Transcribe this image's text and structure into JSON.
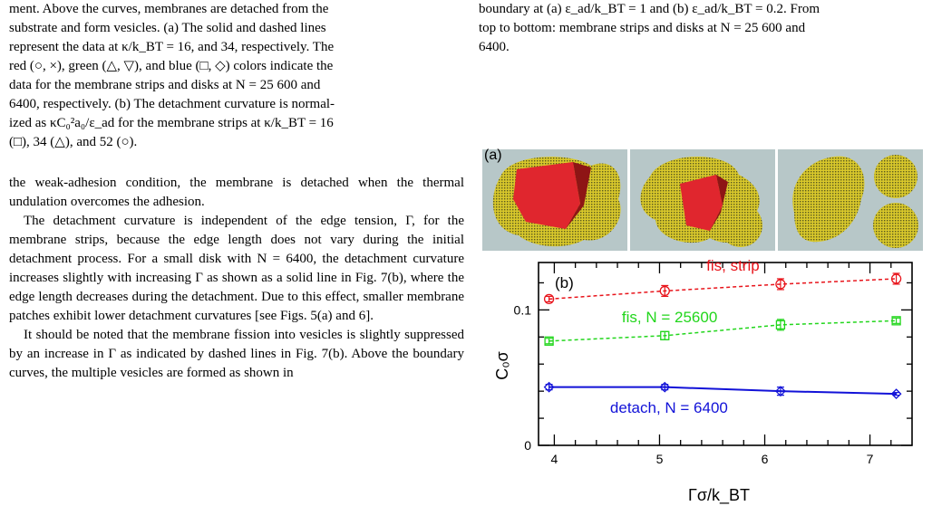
{
  "left_column": {
    "caption_lines": [
      "ment. Above the curves, membranes are detached from the",
      "substrate and form vesicles. (a) The solid and dashed lines",
      "represent the data at κ/k_BT = 16, and 34, respectively. The",
      "red (○, ×), green (△, ▽), and blue (□, ◇) colors indicate the",
      "data for the membrane strips and disks at N = 25 600 and",
      "6400, respectively. (b) The detachment curvature is normal-",
      "ized as κC₀²a₀/ε_ad for the membrane strips at κ/k_BT = 16",
      "(□), 34 (△), and 52 (○)."
    ],
    "paragraphs": [
      "the weak-adhesion condition, the membrane is detached when the thermal undulation overcomes the adhesion.",
      "The detachment curvature is independent of the edge tension, Γ, for the membrane strips, because the edge length does not vary during the initial detachment process. For a small disk with N = 6400, the detachment curvature increases slightly with increasing Γ as shown as a solid line in Fig. 7(b), where the edge length decreases during the detachment. Due to this effect, smaller membrane patches exhibit lower detachment curvatures [see Figs. 5(a) and 6].",
      "It should be noted that the membrane fission into vesicles is slightly suppressed by an increase in Γ as indicated by dashed lines in Fig. 7(b). Above the boundary curves, the multiple vesicles are formed as shown in"
    ]
  },
  "right_column": {
    "caption_lines": [
      "boundary at (a) ε_ad/k_BT = 1 and (b) ε_ad/k_BT = 0.2. From",
      "top to bottom: membrane strips and disks at N = 25 600 and",
      "6400."
    ]
  },
  "figure": {
    "panel_a_label": "(a)",
    "panel_b_label": "(b)",
    "colors": {
      "red": "#e8141b",
      "green": "#22d61c",
      "blue": "#1212d8",
      "substrate": "#b7c7c8",
      "membrane": "#d7c52a"
    }
  },
  "chart_data": {
    "type": "line",
    "xlabel": "Γσ/k_BT",
    "ylabel": "C₀σ",
    "xlim": [
      3.85,
      7.4
    ],
    "ylim": [
      0,
      0.135
    ],
    "xticks": [
      "4",
      "5",
      "6",
      "7"
    ],
    "yticks": [
      "0",
      "0.1"
    ],
    "series": [
      {
        "name": "fis, strip",
        "color": "#e8141b",
        "style": "dashed",
        "marker": "circle",
        "x": [
          3.95,
          5.05,
          6.15,
          7.25
        ],
        "y": [
          0.108,
          0.114,
          0.119,
          0.123
        ],
        "err": [
          0.002,
          0.004,
          0.004,
          0.004
        ]
      },
      {
        "name": "fis, N = 25600",
        "color": "#22d61c",
        "style": "dashed",
        "marker": "square",
        "x": [
          3.95,
          5.05,
          6.15,
          7.25
        ],
        "y": [
          0.077,
          0.081,
          0.089,
          0.092
        ],
        "err": [
          0.002,
          0.003,
          0.004,
          0.002
        ]
      },
      {
        "name": "detach, N = 6400",
        "color": "#1212d8",
        "style": "solid",
        "marker": "diamond",
        "x": [
          3.95,
          5.05,
          6.15,
          7.25
        ],
        "y": [
          0.043,
          0.043,
          0.04,
          0.038
        ],
        "err": [
          0.002,
          0.002,
          0.003,
          0.001
        ]
      }
    ]
  }
}
